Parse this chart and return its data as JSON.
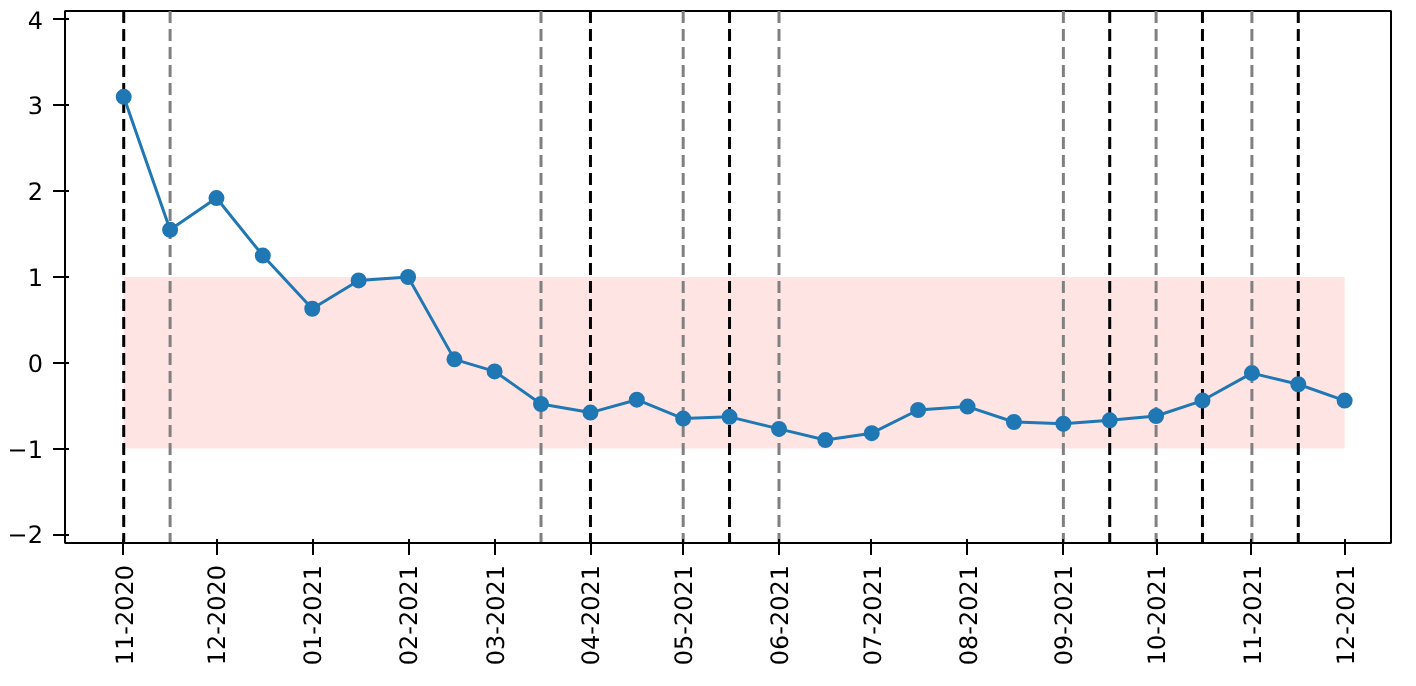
{
  "chart_data": {
    "type": "line",
    "marker": "circle",
    "line_style": "solid",
    "x": [
      "2020-11-01",
      "2020-11-16",
      "2020-12-01",
      "2020-12-16",
      "2021-01-01",
      "2021-01-16",
      "2021-02-01",
      "2021-02-16",
      "2021-03-01",
      "2021-03-16",
      "2021-04-01",
      "2021-04-16",
      "2021-05-01",
      "2021-05-16",
      "2021-06-01",
      "2021-06-16",
      "2021-07-01",
      "2021-07-16",
      "2021-08-01",
      "2021-08-16",
      "2021-09-01",
      "2021-09-16",
      "2021-10-01",
      "2021-10-16",
      "2021-11-01",
      "2021-11-16",
      "2021-12-01"
    ],
    "series": [
      {
        "color": "#1f77b4",
        "values": [
          3.1,
          1.55,
          1.92,
          1.25,
          0.63,
          0.96,
          1.0,
          0.04,
          -0.1,
          -0.48,
          -0.58,
          -0.43,
          -0.65,
          -0.63,
          -0.77,
          -0.9,
          -0.82,
          -0.55,
          -0.51,
          -0.69,
          -0.71,
          -0.67,
          -0.62,
          -0.44,
          -0.12,
          -0.25,
          -0.44
        ]
      }
    ],
    "xlim": [
      "2020-10-13",
      "2021-12-16"
    ],
    "xticks": [
      {
        "value": "2020-11-01",
        "label": "11-2020"
      },
      {
        "value": "2020-12-01",
        "label": "12-2020"
      },
      {
        "value": "2021-01-01",
        "label": "01-2021"
      },
      {
        "value": "2021-02-01",
        "label": "02-2021"
      },
      {
        "value": "2021-03-01",
        "label": "03-2021"
      },
      {
        "value": "2021-04-01",
        "label": "04-2021"
      },
      {
        "value": "2021-05-01",
        "label": "05-2021"
      },
      {
        "value": "2021-06-01",
        "label": "06-2021"
      },
      {
        "value": "2021-07-01",
        "label": "07-2021"
      },
      {
        "value": "2021-08-01",
        "label": "08-2021"
      },
      {
        "value": "2021-09-01",
        "label": "09-2021"
      },
      {
        "value": "2021-10-01",
        "label": "10-2021"
      },
      {
        "value": "2021-11-01",
        "label": "11-2021"
      },
      {
        "value": "2021-12-01",
        "label": "12-2021"
      }
    ],
    "ylim": [
      -2.1,
      4.1
    ],
    "yticks": [
      -2,
      -1,
      0,
      1,
      2,
      3,
      4
    ],
    "grid": false,
    "bands": [
      {
        "axis": "y",
        "from": -1,
        "to": 1,
        "color": "#ffdddd"
      }
    ],
    "ref_lines": [
      {
        "axis": "x",
        "value": "2020-11-01",
        "color": "#000000",
        "line_style": "dashed"
      },
      {
        "axis": "x",
        "value": "2020-11-16",
        "color": "#808080",
        "line_style": "dashed"
      },
      {
        "axis": "x",
        "value": "2021-03-16",
        "color": "#808080",
        "line_style": "dashed"
      },
      {
        "axis": "x",
        "value": "2021-04-01",
        "color": "#000000",
        "line_style": "dashed"
      },
      {
        "axis": "x",
        "value": "2021-05-01",
        "color": "#808080",
        "line_style": "dashed"
      },
      {
        "axis": "x",
        "value": "2021-05-16",
        "color": "#000000",
        "line_style": "dashed"
      },
      {
        "axis": "x",
        "value": "2021-06-01",
        "color": "#808080",
        "line_style": "dashed"
      },
      {
        "axis": "x",
        "value": "2021-09-01",
        "color": "#808080",
        "line_style": "dashed"
      },
      {
        "axis": "x",
        "value": "2021-09-16",
        "color": "#000000",
        "line_style": "dashed"
      },
      {
        "axis": "x",
        "value": "2021-10-01",
        "color": "#808080",
        "line_style": "dashed"
      },
      {
        "axis": "x",
        "value": "2021-10-16",
        "color": "#000000",
        "line_style": "dashed"
      },
      {
        "axis": "x",
        "value": "2021-11-01",
        "color": "#808080",
        "line_style": "dashed"
      },
      {
        "axis": "x",
        "value": "2021-11-16",
        "color": "#000000",
        "line_style": "dashed"
      }
    ]
  }
}
